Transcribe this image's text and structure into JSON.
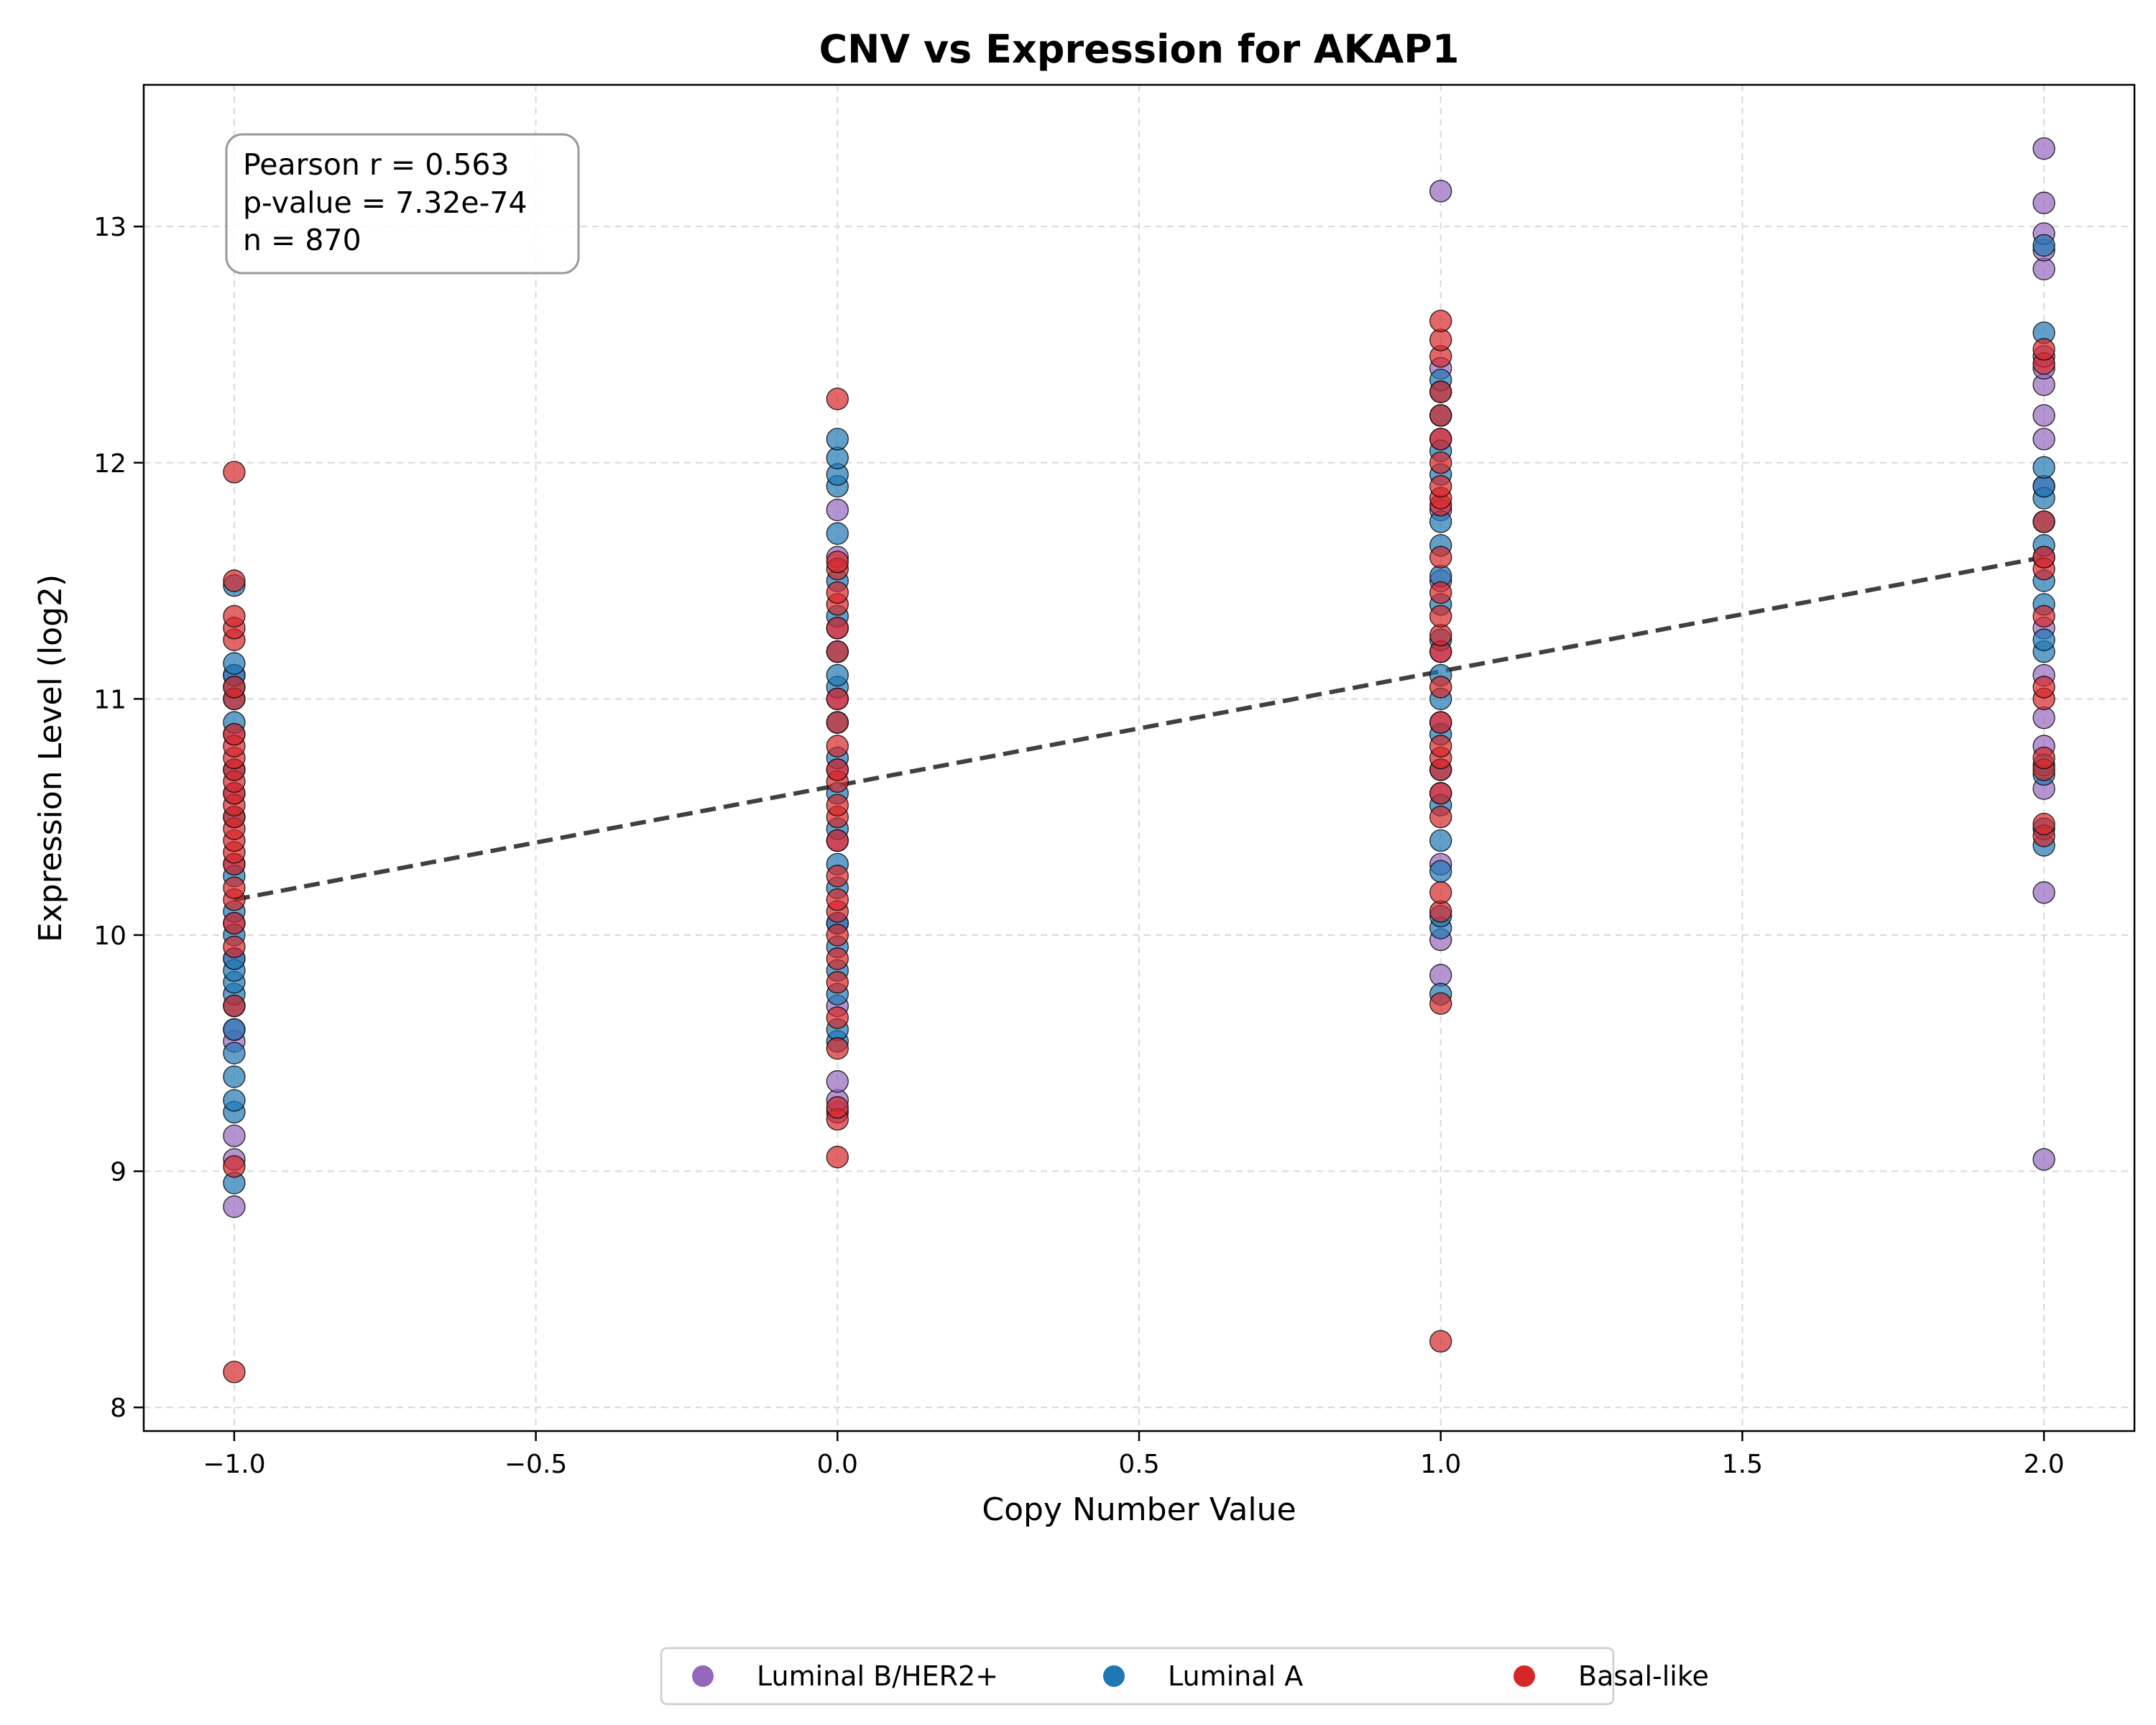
{
  "chart_data": {
    "type": "scatter",
    "title": "CNV vs Expression for AKAP1",
    "xlabel": "Copy Number Value",
    "ylabel": "Expression Level (log2)",
    "xlim": [
      -1.15,
      2.15
    ],
    "ylim": [
      7.9,
      13.6
    ],
    "xticks": [
      -1.0,
      -0.5,
      0.0,
      0.5,
      1.0,
      1.5,
      2.0
    ],
    "xtick_labels": [
      "−1.0",
      "−0.5",
      "0.0",
      "0.5",
      "1.0",
      "1.5",
      "2.0"
    ],
    "yticks": [
      8,
      9,
      10,
      11,
      12,
      13
    ],
    "ytick_labels": [
      "8",
      "9",
      "10",
      "11",
      "12",
      "13"
    ],
    "grid": true,
    "legend_position": "bottom-center",
    "stats": [
      "Pearson r = 0.563",
      "p-value = 7.32e-74",
      "n = 870"
    ],
    "regression_line": {
      "x": [
        -1.0,
        2.0
      ],
      "y": [
        10.15,
        11.6
      ],
      "color": "#404040",
      "style": "dashed"
    },
    "series": [
      {
        "name": "Luminal B/HER2+",
        "color": "#9467bd",
        "points": [
          [
            -1,
            8.85
          ],
          [
            -1,
            9.05
          ],
          [
            -1,
            9.15
          ],
          [
            -1,
            9.55
          ],
          [
            -1,
            9.6
          ],
          [
            -1,
            9.9
          ],
          [
            -1,
            10.05
          ],
          [
            -1,
            10.3
          ],
          [
            -1,
            10.6
          ],
          [
            -1,
            10.85
          ],
          [
            -1,
            11.1
          ],
          [
            0,
            9.25
          ],
          [
            0,
            9.3
          ],
          [
            0,
            9.38
          ],
          [
            0,
            9.7
          ],
          [
            0,
            10.05
          ],
          [
            0,
            10.4
          ],
          [
            0,
            10.7
          ],
          [
            0,
            11.0
          ],
          [
            0,
            11.3
          ],
          [
            0,
            11.6
          ],
          [
            0,
            11.8
          ],
          [
            1,
            9.83
          ],
          [
            1,
            9.98
          ],
          [
            1,
            10.3
          ],
          [
            1,
            10.6
          ],
          [
            1,
            10.9
          ],
          [
            1,
            11.2
          ],
          [
            1,
            11.5
          ],
          [
            1,
            11.8
          ],
          [
            1,
            12.1
          ],
          [
            1,
            12.4
          ],
          [
            1,
            13.15
          ],
          [
            2,
            9.05
          ],
          [
            2,
            10.18
          ],
          [
            2,
            10.62
          ],
          [
            2,
            10.8
          ],
          [
            2,
            10.92
          ],
          [
            2,
            11.1
          ],
          [
            2,
            11.3
          ],
          [
            2,
            11.6
          ],
          [
            2,
            11.9
          ],
          [
            2,
            12.1
          ],
          [
            2,
            12.2
          ],
          [
            2,
            12.33
          ],
          [
            2,
            12.4
          ],
          [
            2,
            12.45
          ],
          [
            2,
            12.82
          ],
          [
            2,
            12.9
          ],
          [
            2,
            12.97
          ],
          [
            2,
            13.1
          ],
          [
            2,
            13.33
          ]
        ]
      },
      {
        "name": "Luminal A",
        "color": "#1f77b4",
        "points": [
          [
            -1,
            8.95
          ],
          [
            -1,
            9.25
          ],
          [
            -1,
            9.3
          ],
          [
            -1,
            9.4
          ],
          [
            -1,
            9.5
          ],
          [
            -1,
            9.6
          ],
          [
            -1,
            9.7
          ],
          [
            -1,
            9.75
          ],
          [
            -1,
            9.8
          ],
          [
            -1,
            9.85
          ],
          [
            -1,
            9.9
          ],
          [
            -1,
            10.0
          ],
          [
            -1,
            10.1
          ],
          [
            -1,
            10.25
          ],
          [
            -1,
            10.5
          ],
          [
            -1,
            10.7
          ],
          [
            -1,
            10.9
          ],
          [
            -1,
            11.0
          ],
          [
            -1,
            11.05
          ],
          [
            -1,
            11.1
          ],
          [
            -1,
            11.15
          ],
          [
            -1,
            11.48
          ],
          [
            0,
            9.55
          ],
          [
            0,
            9.6
          ],
          [
            0,
            9.75
          ],
          [
            0,
            9.85
          ],
          [
            0,
            9.95
          ],
          [
            0,
            10.05
          ],
          [
            0,
            10.2
          ],
          [
            0,
            10.3
          ],
          [
            0,
            10.45
          ],
          [
            0,
            10.6
          ],
          [
            0,
            10.75
          ],
          [
            0,
            10.9
          ],
          [
            0,
            11.05
          ],
          [
            0,
            11.1
          ],
          [
            0,
            11.2
          ],
          [
            0,
            11.35
          ],
          [
            0,
            11.5
          ],
          [
            0,
            11.7
          ],
          [
            0,
            11.9
          ],
          [
            0,
            11.95
          ],
          [
            0,
            12.02
          ],
          [
            0,
            12.1
          ],
          [
            1,
            9.75
          ],
          [
            1,
            10.03
          ],
          [
            1,
            10.08
          ],
          [
            1,
            10.27
          ],
          [
            1,
            10.4
          ],
          [
            1,
            10.55
          ],
          [
            1,
            10.7
          ],
          [
            1,
            10.85
          ],
          [
            1,
            11.0
          ],
          [
            1,
            11.1
          ],
          [
            1,
            11.25
          ],
          [
            1,
            11.4
          ],
          [
            1,
            11.52
          ],
          [
            1,
            11.65
          ],
          [
            1,
            11.75
          ],
          [
            1,
            11.95
          ],
          [
            1,
            12.05
          ],
          [
            1,
            12.2
          ],
          [
            1,
            12.3
          ],
          [
            1,
            12.35
          ],
          [
            2,
            10.38
          ],
          [
            2,
            10.45
          ],
          [
            2,
            10.68
          ],
          [
            2,
            10.72
          ],
          [
            2,
            11.2
          ],
          [
            2,
            11.25
          ],
          [
            2,
            11.4
          ],
          [
            2,
            11.5
          ],
          [
            2,
            11.65
          ],
          [
            2,
            11.75
          ],
          [
            2,
            11.85
          ],
          [
            2,
            11.9
          ],
          [
            2,
            11.98
          ],
          [
            2,
            12.55
          ],
          [
            2,
            12.92
          ]
        ]
      },
      {
        "name": "Basal-like",
        "color": "#d62728",
        "points": [
          [
            -1,
            8.15
          ],
          [
            -1,
            9.02
          ],
          [
            -1,
            9.7
          ],
          [
            -1,
            9.95
          ],
          [
            -1,
            10.05
          ],
          [
            -1,
            10.15
          ],
          [
            -1,
            10.2
          ],
          [
            -1,
            10.3
          ],
          [
            -1,
            10.35
          ],
          [
            -1,
            10.4
          ],
          [
            -1,
            10.45
          ],
          [
            -1,
            10.5
          ],
          [
            -1,
            10.55
          ],
          [
            -1,
            10.6
          ],
          [
            -1,
            10.65
          ],
          [
            -1,
            10.7
          ],
          [
            -1,
            10.75
          ],
          [
            -1,
            10.8
          ],
          [
            -1,
            10.85
          ],
          [
            -1,
            11.0
          ],
          [
            -1,
            11.05
          ],
          [
            -1,
            11.25
          ],
          [
            -1,
            11.3
          ],
          [
            -1,
            11.35
          ],
          [
            -1,
            11.5
          ],
          [
            -1,
            11.96
          ],
          [
            0,
            9.06
          ],
          [
            0,
            9.22
          ],
          [
            0,
            9.27
          ],
          [
            0,
            9.52
          ],
          [
            0,
            9.65
          ],
          [
            0,
            9.8
          ],
          [
            0,
            9.9
          ],
          [
            0,
            10.0
          ],
          [
            0,
            10.1
          ],
          [
            0,
            10.15
          ],
          [
            0,
            10.25
          ],
          [
            0,
            10.4
          ],
          [
            0,
            10.5
          ],
          [
            0,
            10.55
          ],
          [
            0,
            10.65
          ],
          [
            0,
            10.7
          ],
          [
            0,
            10.8
          ],
          [
            0,
            10.9
          ],
          [
            0,
            11.0
          ],
          [
            0,
            11.2
          ],
          [
            0,
            11.3
          ],
          [
            0,
            11.4
          ],
          [
            0,
            11.45
          ],
          [
            0,
            11.55
          ],
          [
            0,
            11.58
          ],
          [
            0,
            12.27
          ],
          [
            1,
            8.28
          ],
          [
            1,
            9.71
          ],
          [
            1,
            10.1
          ],
          [
            1,
            10.18
          ],
          [
            1,
            10.5
          ],
          [
            1,
            10.6
          ],
          [
            1,
            10.7
          ],
          [
            1,
            10.75
          ],
          [
            1,
            10.8
          ],
          [
            1,
            10.9
          ],
          [
            1,
            11.05
          ],
          [
            1,
            11.2
          ],
          [
            1,
            11.27
          ],
          [
            1,
            11.35
          ],
          [
            1,
            11.45
          ],
          [
            1,
            11.6
          ],
          [
            1,
            11.82
          ],
          [
            1,
            11.85
          ],
          [
            1,
            11.9
          ],
          [
            1,
            12.0
          ],
          [
            1,
            12.1
          ],
          [
            1,
            12.2
          ],
          [
            1,
            12.3
          ],
          [
            1,
            12.45
          ],
          [
            1,
            12.52
          ],
          [
            1,
            12.6
          ],
          [
            2,
            10.42
          ],
          [
            2,
            10.47
          ],
          [
            2,
            10.7
          ],
          [
            2,
            10.75
          ],
          [
            2,
            11.0
          ],
          [
            2,
            11.05
          ],
          [
            2,
            11.35
          ],
          [
            2,
            11.55
          ],
          [
            2,
            11.6
          ],
          [
            2,
            11.75
          ],
          [
            2,
            12.42
          ],
          [
            2,
            12.48
          ]
        ]
      }
    ]
  }
}
